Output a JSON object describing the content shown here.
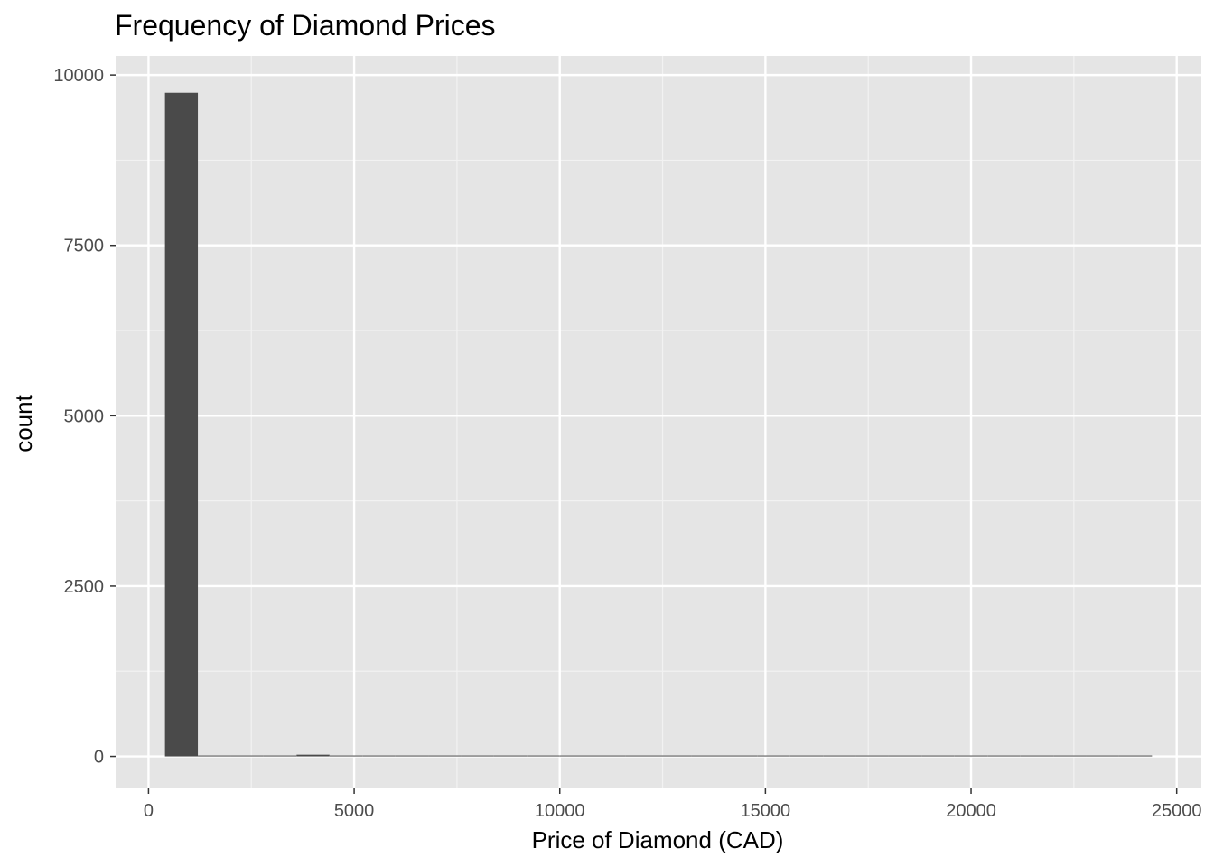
{
  "chart_data": {
    "type": "bar",
    "title": "Frequency of Diamond Prices",
    "xlabel": "Price of Diamond (CAD)",
    "ylabel": "count",
    "xlim": [
      -800,
      25600
    ],
    "ylim": [
      -470,
      10280
    ],
    "x_ticks": [
      0,
      5000,
      10000,
      15000,
      20000,
      25000
    ],
    "x_tick_labels": [
      "0",
      "5000",
      "10000",
      "15000",
      "20000",
      "25000"
    ],
    "y_ticks": [
      0,
      2500,
      5000,
      7500,
      10000
    ],
    "y_tick_labels": [
      "0",
      "2500",
      "5000",
      "7500",
      "10000"
    ],
    "bin_width": 800,
    "bins": [
      {
        "x0": 400,
        "x1": 1200,
        "count": 9740
      },
      {
        "x0": 1200,
        "x1": 2000,
        "count": 10
      },
      {
        "x0": 2000,
        "x1": 2800,
        "count": 8
      },
      {
        "x0": 2800,
        "x1": 3600,
        "count": 10
      },
      {
        "x0": 3600,
        "x1": 4400,
        "count": 25
      },
      {
        "x0": 4400,
        "x1": 5200,
        "count": 8
      },
      {
        "x0": 5200,
        "x1": 6000,
        "count": 6
      },
      {
        "x0": 6000,
        "x1": 6800,
        "count": 5
      },
      {
        "x0": 6800,
        "x1": 7600,
        "count": 4
      },
      {
        "x0": 7600,
        "x1": 8400,
        "count": 6
      },
      {
        "x0": 8400,
        "x1": 9200,
        "count": 3
      },
      {
        "x0": 9200,
        "x1": 10000,
        "count": 4
      },
      {
        "x0": 10000,
        "x1": 10800,
        "count": 3
      },
      {
        "x0": 10800,
        "x1": 11600,
        "count": 4
      },
      {
        "x0": 11600,
        "x1": 12400,
        "count": 2
      },
      {
        "x0": 12400,
        "x1": 13200,
        "count": 3
      },
      {
        "x0": 13200,
        "x1": 14000,
        "count": 2
      },
      {
        "x0": 14000,
        "x1": 14800,
        "count": 2
      },
      {
        "x0": 14800,
        "x1": 15600,
        "count": 2
      },
      {
        "x0": 15600,
        "x1": 16400,
        "count": 1
      },
      {
        "x0": 16400,
        "x1": 17200,
        "count": 1
      },
      {
        "x0": 17200,
        "x1": 18000,
        "count": 1
      },
      {
        "x0": 18000,
        "x1": 18800,
        "count": 1
      },
      {
        "x0": 18800,
        "x1": 19600,
        "count": 2
      },
      {
        "x0": 19600,
        "x1": 20400,
        "count": 2
      },
      {
        "x0": 20400,
        "x1": 21200,
        "count": 2
      },
      {
        "x0": 21200,
        "x1": 22000,
        "count": 1
      },
      {
        "x0": 22000,
        "x1": 22800,
        "count": 1
      },
      {
        "x0": 22800,
        "x1": 23600,
        "count": 1
      },
      {
        "x0": 23600,
        "x1": 24400,
        "count": 2
      }
    ],
    "grid": true,
    "legend": "none",
    "colors": {
      "panel_background": "#e5e5e5",
      "grid_major": "#ffffff",
      "grid_minor": "#f2f2f2",
      "bar_fill": "#4a4a4a",
      "tick_mark": "#333333"
    }
  }
}
